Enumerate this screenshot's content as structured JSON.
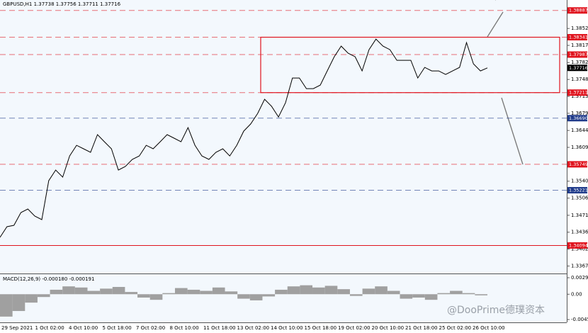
{
  "chart_data": {
    "type": "line",
    "title": "GBPUSD,H1 1.37738 1.37756 1.37711 1.37716",
    "x_labels": [
      "29 Sep 2021",
      "1 Oct 02:00",
      "4 Oct 10:00",
      "5 Oct 18:00",
      "7 Oct 02:00",
      "8 Oct 10:00",
      "11 Oct 18:00",
      "13 Oct 02:00",
      "14 Oct 10:00",
      "15 Oct 18:00",
      "19 Oct 02:00",
      "20 Oct 10:00",
      "21 Oct 18:00",
      "25 Oct 02:00",
      "26 Oct 10:00"
    ],
    "series": [
      {
        "name": "GBPUSD",
        "color": "#000000",
        "values": [
          1.34259,
          1.34476,
          1.34505,
          1.34765,
          1.34837,
          1.34693,
          1.34621,
          1.35415,
          1.35632,
          1.35487,
          1.3592,
          1.36137,
          1.36065,
          1.35993,
          1.36354,
          1.36209,
          1.36065,
          1.35632,
          1.35704,
          1.35849,
          1.3592,
          1.36137,
          1.36065,
          1.36209,
          1.36354,
          1.36282,
          1.36209,
          1.36498,
          1.36137,
          1.3592,
          1.35849,
          1.35993,
          1.36065,
          1.3592,
          1.36137,
          1.36426,
          1.36571,
          1.36787,
          1.37076,
          1.36932,
          1.36715,
          1.37004,
          1.37509,
          1.37509,
          1.37293,
          1.37293,
          1.37365,
          1.37654,
          1.37942,
          1.38159,
          1.38015,
          1.37942,
          1.37654,
          1.38087,
          1.38303,
          1.38159,
          1.38087,
          1.3787,
          1.3787,
          1.3787,
          1.37509,
          1.37726,
          1.37654,
          1.37654,
          1.37581,
          1.37654,
          1.37726,
          1.38231,
          1.37798,
          1.37654,
          1.37716
        ]
      }
    ],
    "ylim": [
      1.33537,
      1.391
    ],
    "yticks": [
      {
        "value": 1.3852,
        "label": "1.38520"
      },
      1.38175,
      1.37825,
      {
        "value": 1.3748,
        "label": "1.37480"
      },
      1.37135,
      {
        "value": 1.3679,
        "label": "1.36790"
      },
      {
        "value": 1.3644,
        "label": "1.36440"
      },
      1.36095,
      1.35405,
      {
        "value": 1.3506,
        "label": "1.35060"
      },
      {
        "value": 1.3471,
        "label": "1.34710"
      },
      1.34365,
      {
        "value": 1.3402,
        "label": "1.34020"
      },
      1.33675
    ],
    "levels": [
      {
        "value": 1.38887,
        "color": "#e0141e",
        "line": "dashed"
      },
      {
        "value": 1.38341,
        "color": "#e0141e",
        "line": "dashed"
      },
      {
        "value": 1.37987,
        "color": "#e0141e",
        "line": "dashed"
      },
      {
        "value": 1.37716,
        "color": "#000000",
        "line": "none"
      },
      {
        "value": 1.37211,
        "color": "#e0141e",
        "line": "dashed"
      },
      {
        "value": 1.3669,
        "label": "1.36690",
        "color": "#1f3a8a",
        "line": "dashed"
      },
      {
        "value": 1.35749,
        "color": "#e0141e",
        "line": "dashed"
      },
      {
        "value": 1.35221,
        "color": "#1f3a8a",
        "line": "dashed"
      },
      {
        "value": 1.34094,
        "color": "#e0141e",
        "line": "solid"
      }
    ],
    "macd": {
      "label": "MACD(12,26,9) -0.000180 -0.000191",
      "color": "#a0a0a0",
      "values": [
        -0.004,
        -0.003,
        -0.0015,
        -0.0005,
        0.0008,
        0.0014,
        0.0012,
        0.0006,
        0.001,
        0.0013,
        0.0004,
        -0.0006,
        -0.001,
        0.0002,
        0.0011,
        0.0008,
        0.0006,
        0.0012,
        0.0005,
        -0.0008,
        -0.0011,
        -0.0004,
        0.0008,
        0.0014,
        0.0016,
        0.0012,
        0.0015,
        0.0009,
        -0.0003,
        0.001,
        0.0014,
        0.0006,
        -0.0008,
        -0.0006,
        -0.001,
        0.0002,
        0.0006,
        0.0002,
        -0.0002
      ],
      "ylim": [
        -0.00503,
        0.00345
      ],
      "yticks": [
        0.002941,
        {
          "value": 0,
          "label": "0.00"
        },
        -0.004527
      ]
    },
    "watermark": "@DooPrime德璞资本"
  }
}
